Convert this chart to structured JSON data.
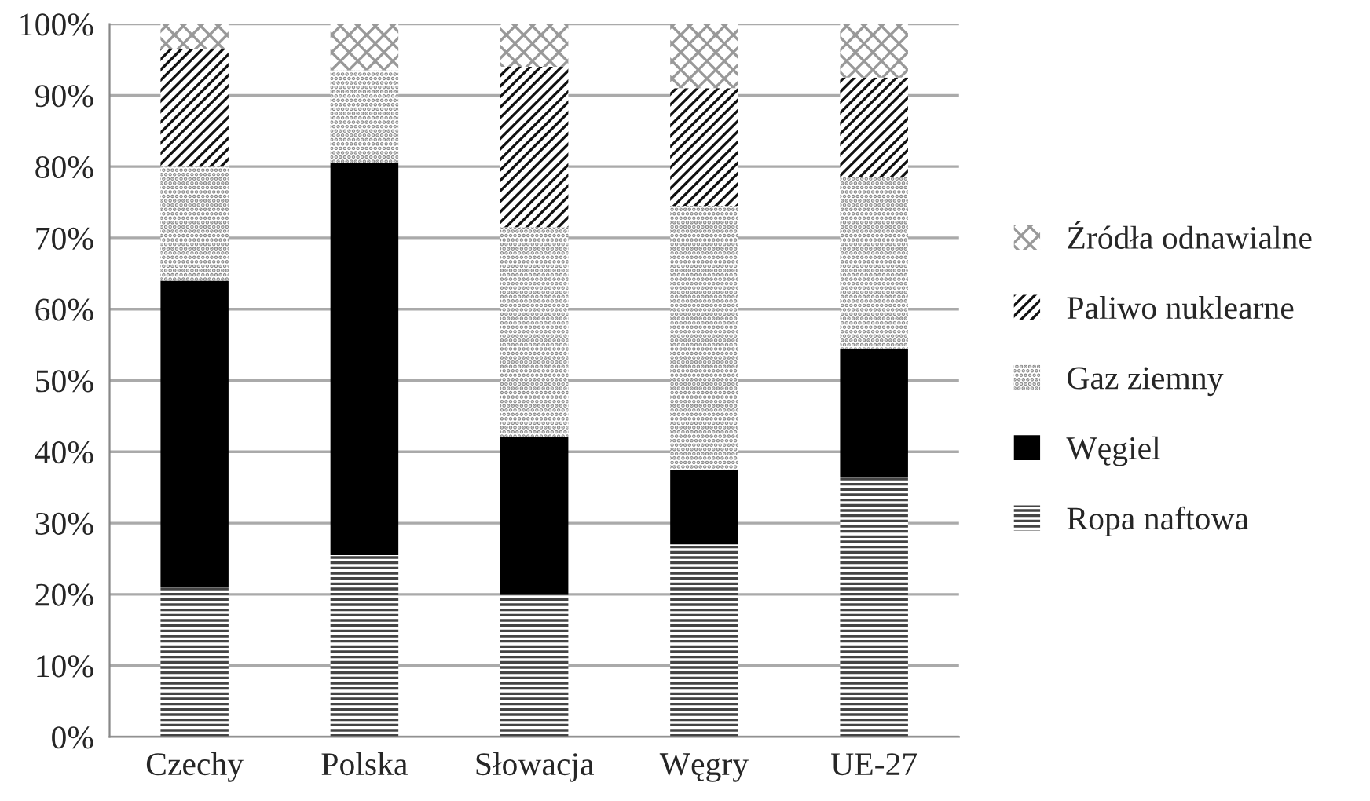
{
  "chart_data": {
    "type": "bar",
    "stacked": true,
    "categories": [
      "Czechy",
      "Polska",
      "Słowacja",
      "Węgry",
      "UE-27"
    ],
    "series": [
      {
        "name": "Ropa naftowa",
        "color": "#444444",
        "values": [
          21,
          25.5,
          20,
          27,
          36.5
        ]
      },
      {
        "name": "Węgiel",
        "color": "#000000",
        "values": [
          43,
          55,
          22,
          10.5,
          18
        ]
      },
      {
        "name": "Gaz ziemny",
        "color": "#888888",
        "values": [
          16,
          13,
          29.5,
          37,
          24
        ]
      },
      {
        "name": "Paliwo nuklearne",
        "color": "#111111",
        "values": [
          16.5,
          0,
          22.5,
          16.5,
          14
        ]
      },
      {
        "name": "Źródła odnawialne",
        "color": "#999999",
        "values": [
          3.5,
          6.5,
          6,
          9,
          7.5
        ]
      }
    ],
    "ylim": [
      0,
      100
    ],
    "yticks": [
      {
        "value": 0,
        "label": "0%"
      },
      {
        "value": 10,
        "label": "10%"
      },
      {
        "value": 20,
        "label": "20%"
      },
      {
        "value": 30,
        "label": "30%"
      },
      {
        "value": 40,
        "label": "40%"
      },
      {
        "value": 50,
        "label": "50%"
      },
      {
        "value": 60,
        "label": "60%"
      },
      {
        "value": 70,
        "label": "70%"
      },
      {
        "value": 80,
        "label": "80%"
      },
      {
        "value": 90,
        "label": "90%"
      },
      {
        "value": 100,
        "label": "100%"
      }
    ],
    "grid": "y",
    "legend": "right"
  }
}
